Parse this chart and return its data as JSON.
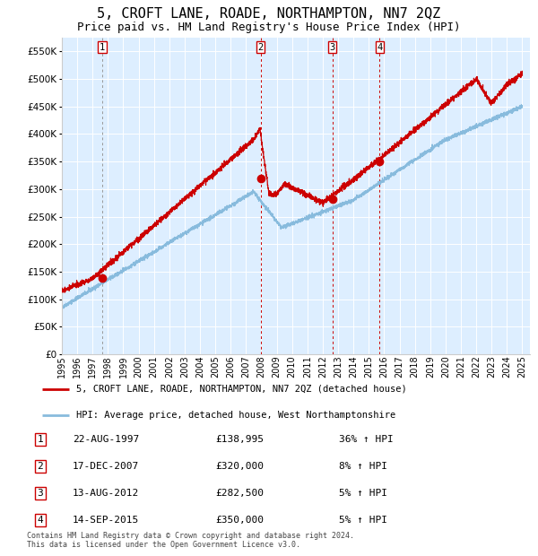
{
  "title": "5, CROFT LANE, ROADE, NORTHAMPTON, NN7 2QZ",
  "subtitle": "Price paid vs. HM Land Registry's House Price Index (HPI)",
  "title_fontsize": 11,
  "subtitle_fontsize": 9,
  "background_color": "#ffffff",
  "plot_bg_color": "#ddeeff",
  "red_line_color": "#cc0000",
  "blue_line_color": "#88bbdd",
  "grid_color": "#ffffff",
  "ylim": [
    0,
    575000
  ],
  "yticks": [
    0,
    50000,
    100000,
    150000,
    200000,
    250000,
    300000,
    350000,
    400000,
    450000,
    500000,
    550000
  ],
  "xlabel_years": [
    "1995",
    "1996",
    "1997",
    "1998",
    "1999",
    "2000",
    "2001",
    "2002",
    "2003",
    "2004",
    "2005",
    "2006",
    "2007",
    "2008",
    "2009",
    "2010",
    "2011",
    "2012",
    "2013",
    "2014",
    "2015",
    "2016",
    "2017",
    "2018",
    "2019",
    "2020",
    "2021",
    "2022",
    "2023",
    "2024",
    "2025"
  ],
  "sale_dates": [
    1997.64,
    2007.96,
    2012.62,
    2015.71
  ],
  "sale_prices": [
    138995,
    320000,
    282500,
    350000
  ],
  "sale_labels": [
    "1",
    "2",
    "3",
    "4"
  ],
  "legend_red_label": "5, CROFT LANE, ROADE, NORTHAMPTON, NN7 2QZ (detached house)",
  "legend_blue_label": "HPI: Average price, detached house, West Northamptonshire",
  "table_rows": [
    [
      "1",
      "22-AUG-1997",
      "£138,995",
      "36% ↑ HPI"
    ],
    [
      "2",
      "17-DEC-2007",
      "£320,000",
      "8% ↑ HPI"
    ],
    [
      "3",
      "13-AUG-2012",
      "£282,500",
      "5% ↑ HPI"
    ],
    [
      "4",
      "14-SEP-2015",
      "£350,000",
      "5% ↑ HPI"
    ]
  ],
  "footer": "Contains HM Land Registry data © Crown copyright and database right 2024.\nThis data is licensed under the Open Government Licence v3.0."
}
